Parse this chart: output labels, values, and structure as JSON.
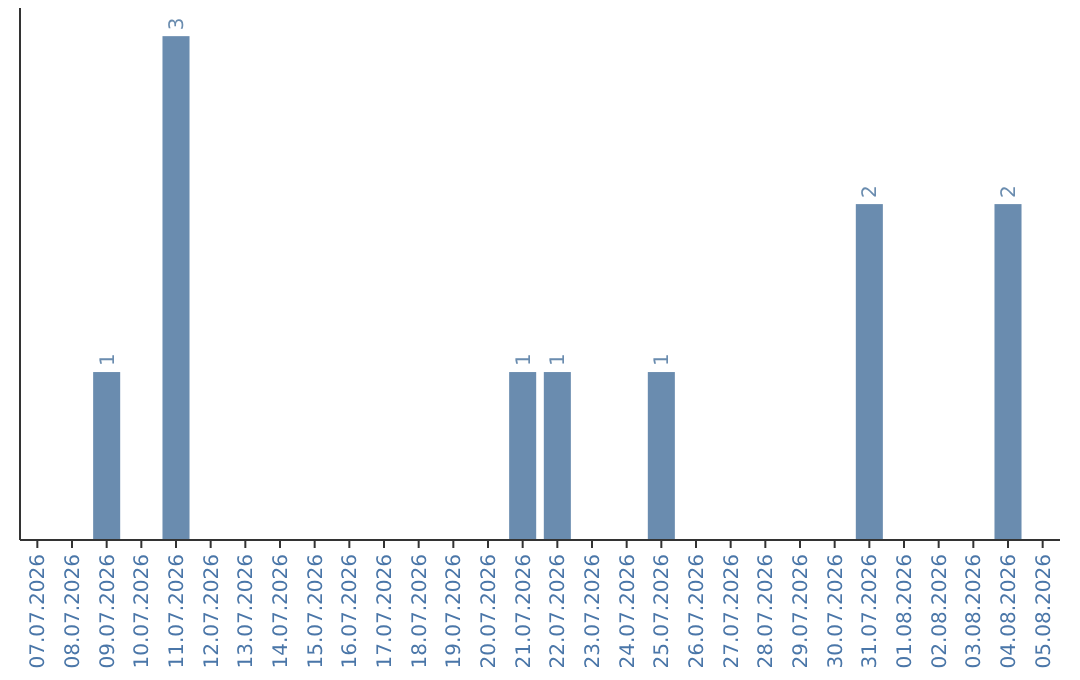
{
  "chart_data": {
    "type": "bar",
    "categories": [
      "07.07.2026",
      "08.07.2026",
      "09.07.2026",
      "10.07.2026",
      "11.07.2026",
      "12.07.2026",
      "13.07.2026",
      "14.07.2026",
      "15.07.2026",
      "16.07.2026",
      "17.07.2026",
      "18.07.2026",
      "19.07.2026",
      "20.07.2026",
      "21.07.2026",
      "22.07.2026",
      "23.07.2026",
      "24.07.2026",
      "25.07.2026",
      "26.07.2026",
      "27.07.2026",
      "28.07.2026",
      "29.07.2026",
      "30.07.2026",
      "31.07.2026",
      "01.08.2026",
      "02.08.2026",
      "03.08.2026",
      "04.08.2026",
      "05.08.2026"
    ],
    "values": [
      0,
      0,
      1,
      0,
      3,
      0,
      0,
      0,
      0,
      0,
      0,
      0,
      0,
      0,
      1,
      1,
      0,
      0,
      1,
      0,
      0,
      0,
      0,
      0,
      2,
      0,
      0,
      0,
      2,
      0
    ],
    "value_labels": [
      null,
      null,
      "1",
      null,
      "3",
      null,
      null,
      null,
      null,
      null,
      null,
      null,
      null,
      null,
      "1",
      "1",
      null,
      null,
      "1",
      null,
      null,
      null,
      null,
      null,
      "2",
      null,
      null,
      null,
      "2",
      null
    ],
    "color": "#6a8caf"
  }
}
